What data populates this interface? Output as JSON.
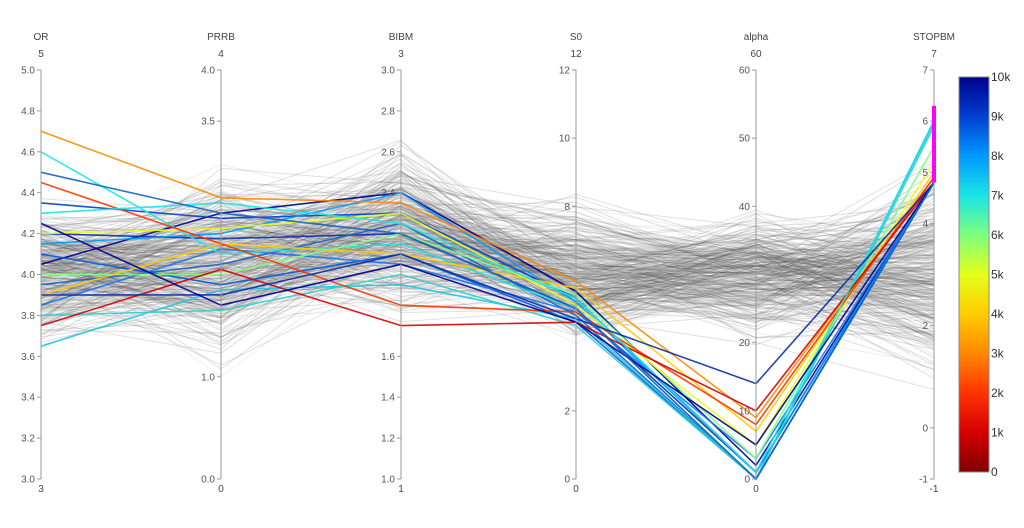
{
  "chart_data": {
    "type": "parallel_coordinates",
    "axes": [
      {
        "name": "OR",
        "top_label": "5",
        "bottom_label": "3",
        "range": [
          3.0,
          5.0
        ],
        "ticks": [
          "3.0",
          "3.2",
          "3.4",
          "3.6",
          "3.8",
          "4.0",
          "4.2",
          "4.4",
          "4.6",
          "4.8",
          "5.0"
        ]
      },
      {
        "name": "PRRB",
        "top_label": "4",
        "bottom_label": "0",
        "range": [
          0.0,
          4.0
        ],
        "ticks": [
          "0.0",
          "1.0",
          "3.5",
          "4.0"
        ]
      },
      {
        "name": "BIBM",
        "top_label": "3",
        "bottom_label": "1",
        "range": [
          1.0,
          3.0
        ],
        "ticks": [
          "1.0",
          "1.2",
          "1.4",
          "1.6",
          "2.4",
          "2.6",
          "2.8",
          "3.0"
        ]
      },
      {
        "name": "S0",
        "top_label": "12",
        "bottom_label": "0",
        "range": [
          0,
          12
        ],
        "ticks": [
          "0",
          "2",
          "8",
          "10",
          "12"
        ]
      },
      {
        "name": "alpha",
        "top_label": "60",
        "bottom_label": "0",
        "range": [
          0,
          60
        ],
        "ticks": [
          "0",
          "10",
          "20",
          "40",
          "50",
          "60"
        ]
      },
      {
        "name": "STOPBM",
        "top_label": "7",
        "bottom_label": "-1",
        "range": [
          -1,
          7
        ],
        "ticks": [
          "-1",
          "0",
          "2",
          "4",
          "5",
          "6",
          "7"
        ]
      }
    ],
    "brush": {
      "axis": "STOPBM",
      "range": [
        4.8,
        6.3
      ],
      "color": "#ff00ff"
    },
    "colorbar": {
      "range": [
        0,
        10000
      ],
      "ticks": [
        "0",
        "1k",
        "2k",
        "3k",
        "4k",
        "5k",
        "6k",
        "7k",
        "8k",
        "9k",
        "10k"
      ],
      "colors": [
        "#7f0000",
        "#d40000",
        "#ff3300",
        "#ff8800",
        "#ffcc00",
        "#e5ff1a",
        "#7fff7f",
        "#1ae5e5",
        "#0099ff",
        "#0040d0",
        "#00008f"
      ]
    },
    "context_color": "#555555",
    "highlighted_series": [
      {
        "color": "#00008f",
        "values": [
          4.05,
          2.6,
          2.4,
          5.5,
          2,
          4.8
        ]
      },
      {
        "color": "#0a2fa8",
        "values": [
          4.2,
          2.35,
          2.2,
          5.0,
          1,
          4.8
        ]
      },
      {
        "color": "#1463c8",
        "values": [
          3.95,
          2.1,
          2.25,
          4.8,
          0,
          4.8
        ]
      },
      {
        "color": "#0040d0",
        "values": [
          4.35,
          2.55,
          2.3,
          5.3,
          1,
          4.8
        ]
      },
      {
        "color": "#0059e0",
        "values": [
          4.1,
          1.9,
          2.1,
          4.6,
          0,
          4.8
        ]
      },
      {
        "color": "#1a74f0",
        "values": [
          3.85,
          2.25,
          2.05,
          4.9,
          3,
          4.8
        ]
      },
      {
        "color": "#0099ff",
        "values": [
          4.15,
          2.4,
          2.4,
          5.2,
          1,
          4.8
        ]
      },
      {
        "color": "#1ae5e5",
        "values": [
          4.6,
          2.2,
          2.15,
          5.0,
          0,
          6.0
        ]
      },
      {
        "color": "#19c6e6",
        "values": [
          3.65,
          1.85,
          1.95,
          4.7,
          0,
          6.0
        ]
      },
      {
        "color": "#33cccc",
        "values": [
          3.8,
          1.65,
          2.0,
          4.5,
          0,
          5.9
        ]
      },
      {
        "color": "#7fff7f",
        "values": [
          4.0,
          2.0,
          2.2,
          5.4,
          3,
          5.5
        ]
      },
      {
        "color": "#e5ff1a",
        "values": [
          4.2,
          2.45,
          2.3,
          5.1,
          5,
          5.2
        ]
      },
      {
        "color": "#ffcc00",
        "values": [
          3.9,
          2.3,
          2.1,
          5.6,
          7,
          5.0
        ]
      },
      {
        "color": "#ff8800",
        "values": [
          4.7,
          2.75,
          2.35,
          5.8,
          9,
          4.9
        ]
      },
      {
        "color": "#ff3300",
        "values": [
          4.45,
          2.3,
          1.85,
          4.9,
          8,
          4.9
        ]
      },
      {
        "color": "#d40000",
        "values": [
          3.75,
          2.05,
          1.75,
          4.6,
          10,
          4.8
        ]
      },
      {
        "color": "#1ae5e5",
        "values": [
          4.3,
          2.7,
          2.25,
          5.3,
          1,
          5.95
        ]
      },
      {
        "color": "#0a2fa8",
        "values": [
          3.9,
          1.8,
          2.1,
          4.7,
          14,
          4.8
        ]
      },
      {
        "color": "#00008f",
        "values": [
          4.25,
          1.7,
          2.05,
          4.6,
          5,
          4.8
        ]
      },
      {
        "color": "#1463c8",
        "values": [
          4.5,
          2.6,
          2.2,
          5.0,
          0,
          4.8
        ]
      }
    ]
  }
}
